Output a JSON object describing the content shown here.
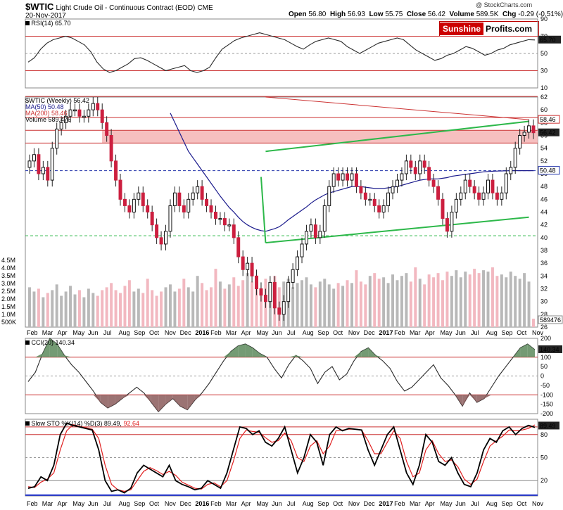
{
  "header": {
    "symbol": "$WTIC",
    "name": "Light Crude Oil - Continuous Contract (EOD)",
    "exchange": "CME",
    "date": "20-Nov-2017",
    "open_label": "Open",
    "open": "56.80",
    "high_label": "High",
    "high": "56.93",
    "low_label": "Low",
    "low": "55.75",
    "close_label": "Close",
    "close": "56.42",
    "volume_label": "Volume",
    "volume": "589.5K",
    "chg_label": "Chg",
    "chg": "-0.29 (-0.51%)",
    "credit": "@ StockCharts.com"
  },
  "logo": {
    "part1": "Sunshine",
    "part2": "Profits.com"
  },
  "colors": {
    "up": "#111111",
    "down": "#cc1f3f",
    "ma50": "#1a1a8c",
    "ma200": "#cc3333",
    "channel": "#2db84a",
    "zone": "#f4b4b4",
    "oscillator": "#2a2a2a",
    "signal": "#e02020"
  },
  "legends": {
    "rsi": "RSI(14) 65.70",
    "price_title": "$WTIC (Weekly) 56.42",
    "ma50": "MA(50) 50.48",
    "ma200": "MA(200) 58.46",
    "volume": "Volume 589,476",
    "cci": "CCI(20) 140.34",
    "sto_prefix": "Slow STO %K(14) %D(3)",
    "sto_k": "89.49",
    "sto_d": "92.64"
  },
  "chart_data": [
    {
      "type": "line",
      "title": "RSI(14) 65.70",
      "ylim": [
        10,
        90
      ],
      "yticks": [
        "90",
        "70",
        "50",
        "30",
        "10"
      ],
      "last_value": "65.70",
      "values": [
        40,
        45,
        55,
        62,
        66,
        68,
        70,
        68,
        64,
        60,
        52,
        40,
        32,
        28,
        30,
        34,
        38,
        44,
        45,
        42,
        38,
        34,
        30,
        32,
        34,
        36,
        30,
        28,
        30,
        34,
        45,
        55,
        60,
        65,
        68,
        70,
        72,
        74,
        72,
        70,
        68,
        66,
        62,
        58,
        55,
        60,
        64,
        66,
        68,
        66,
        64,
        58,
        54,
        50,
        54,
        58,
        62,
        64,
        66,
        68,
        66,
        60,
        54,
        50,
        46,
        42,
        44,
        48,
        50,
        54,
        58,
        56,
        52,
        48,
        50,
        54,
        56,
        60,
        62,
        64,
        66,
        65.7
      ]
    },
    {
      "type": "candlestick",
      "title": "$WTIC (Weekly) 56.42",
      "ylim": [
        26,
        62
      ],
      "yticks": [
        "62",
        "60",
        "58",
        "56",
        "54",
        "52",
        "50",
        "48",
        "46",
        "44",
        "42",
        "40",
        "38",
        "36",
        "34",
        "32",
        "30",
        "28",
        "26"
      ],
      "right_labels": {
        "ma200": "58.46",
        "close": "56.42",
        "ma50": "50.48",
        "volume": "589476"
      },
      "volume_axis": [
        "4.5M",
        "4.0M",
        "3.5M",
        "3.0M",
        "2.5M",
        "2.0M",
        "1.5M",
        "1.0M",
        "500K"
      ],
      "x_labels": [
        "Feb",
        "Mar",
        "Apr",
        "May",
        "Jun",
        "Jul",
        "Aug",
        "Sep",
        "Oct",
        "Nov",
        "Dec",
        "2016",
        "Feb",
        "Mar",
        "Apr",
        "May",
        "Jun",
        "Jul",
        "Aug",
        "Sep",
        "Oct",
        "Nov",
        "Dec",
        "2017",
        "Feb",
        "Mar",
        "Apr",
        "May",
        "Jun",
        "Jul",
        "Aug",
        "Sep",
        "Oct",
        "Nov"
      ],
      "closes": [
        52,
        53,
        50,
        51,
        49,
        54,
        57,
        58,
        59,
        60,
        60,
        59,
        59,
        60,
        61,
        60,
        58,
        56,
        52,
        49,
        46,
        45,
        44,
        46,
        47,
        45,
        44,
        42,
        40,
        39,
        41,
        45,
        47,
        45,
        44,
        46,
        47,
        48,
        46,
        45,
        44,
        43,
        43,
        42,
        42,
        40,
        37,
        35,
        36,
        34,
        32,
        31,
        30,
        33,
        29,
        28,
        30,
        33,
        35,
        37,
        39,
        41,
        42,
        40,
        41,
        45,
        48,
        50,
        49,
        50,
        49,
        50,
        48,
        47,
        46,
        46,
        45,
        44,
        45,
        47,
        48,
        49,
        50,
        52,
        51,
        50,
        52,
        51,
        49,
        48,
        46,
        43,
        41,
        44,
        46,
        47,
        49,
        48,
        47,
        46,
        47,
        49,
        47,
        46,
        47,
        50,
        51,
        54,
        56,
        56.5,
        57.5,
        56.42
      ],
      "ma50": [
        null,
        null,
        null,
        null,
        null,
        null,
        null,
        null,
        null,
        null,
        null,
        null,
        null,
        null,
        null,
        null,
        null,
        null,
        null,
        null,
        null,
        null,
        null,
        null,
        null,
        null,
        null,
        null,
        null,
        null,
        null,
        59.5,
        58,
        56.5,
        55,
        53.5,
        52.5,
        51.5,
        50.5,
        49.5,
        48.5,
        47.5,
        46.5,
        45.6,
        44.7,
        44,
        43.2,
        42.5,
        42,
        41.6,
        41.3,
        41.1,
        41,
        41.2,
        41.4,
        41.7,
        42.2,
        42.8,
        43.3,
        43.8,
        44.3,
        44.8,
        45.4,
        45.9,
        46.3,
        46.7,
        47,
        47.2,
        47.4,
        47.6,
        47.8,
        48,
        48,
        48,
        47.9,
        47.8,
        47.7,
        47.7,
        47.7,
        47.8,
        47.9,
        48,
        48.2,
        48.4,
        48.6,
        48.8,
        49,
        49.1,
        49.2,
        49.2,
        49.2,
        49.3,
        49.4,
        49.6,
        49.7,
        49.8,
        49.9,
        50,
        50.1,
        50.2,
        50.3,
        50.35,
        50.4,
        50.42,
        50.44,
        50.46,
        50.47,
        50.48,
        50.48,
        50.48,
        50.48,
        50.48
      ],
      "ma200": {
        "from": [
          52,
          62
        ],
        "to": [
          110,
          58.46
        ]
      },
      "channel_upper": {
        "from": [
          52,
          53.5
        ],
        "to": [
          110,
          58.2
        ]
      },
      "channel_lower": {
        "from": [
          52,
          39.2
        ],
        "to": [
          110,
          43.2
        ]
      },
      "hlines": [
        62.1,
        58.8,
        56.8,
        54.8,
        50.48,
        40.3
      ],
      "resistance_zone": [
        54.8,
        56.8
      ],
      "volumes": [
        2.8,
        2.5,
        2.7,
        2.1,
        2.4,
        2.6,
        3.0,
        2.2,
        2.5,
        2.9,
        2.3,
        2.6,
        2.1,
        2.7,
        2.4,
        2.2,
        2.6,
        2.8,
        3.1,
        2.6,
        2.4,
        2.9,
        3.3,
        2.5,
        2.7,
        2.4,
        3.4,
        2.6,
        2.2,
        2.5,
        2.8,
        3.0,
        2.5,
        2.7,
        3.4,
        2.8,
        2.5,
        3.6,
        3.1,
        2.6,
        2.8,
        4.1,
        3.2,
        2.7,
        3.0,
        3.5,
        2.9,
        3.3,
        3.8,
        3.2,
        2.9,
        2.7,
        3.4,
        3.1,
        3.6,
        2.8,
        3.2,
        3.4,
        2.8,
        3.1,
        3.3,
        3.5,
        3.0,
        2.8,
        3.2,
        3.4,
        3.0,
        2.7,
        3.1,
        2.9,
        3.3,
        3.1,
        4.0,
        3.2,
        3.0,
        3.6,
        3.8,
        3.4,
        3.5,
        3.1,
        3.7,
        3.3,
        3.6,
        3.8,
        3.2,
        4.2,
        3.4,
        3.0,
        3.7,
        3.5,
        3.8,
        3.3,
        3.9,
        3.6,
        4.0,
        3.5,
        3.9,
        3.7,
        4.1,
        3.8,
        4.0,
        3.9,
        4.2,
        3.6,
        3.7,
        3.5,
        3.9,
        3.6,
        3.4,
        3.8,
        3.2,
        0.59
      ]
    },
    {
      "type": "line",
      "title": "CCI(20) 140.34",
      "ylim": [
        -200,
        200
      ],
      "yticks": [
        "200",
        "140.34",
        "100",
        "50",
        "0",
        "-50",
        "-100",
        "-150",
        "-200"
      ],
      "values": [
        -30,
        20,
        120,
        200,
        170,
        110,
        60,
        20,
        -30,
        -80,
        -140,
        -170,
        -150,
        -120,
        -90,
        -60,
        -90,
        -140,
        -190,
        -150,
        -120,
        -160,
        -180,
        -130,
        -90,
        -40,
        20,
        80,
        130,
        160,
        170,
        150,
        120,
        100,
        40,
        -10,
        60,
        110,
        80,
        40,
        -40,
        20,
        50,
        -20,
        10,
        80,
        130,
        150,
        110,
        80,
        40,
        -30,
        -80,
        -60,
        -20,
        20,
        60,
        -10,
        -50,
        -100,
        -160,
        -90,
        -140,
        -120,
        -60,
        0,
        50,
        100,
        150,
        170,
        140.34
      ]
    },
    {
      "type": "line",
      "title": "Slow STO %K(14) %D(3) 89.49, 92.64",
      "ylim": [
        0,
        100
      ],
      "yticks": [
        "89.49",
        "80",
        "50",
        "20"
      ],
      "k": [
        10,
        12,
        25,
        20,
        40,
        80,
        95,
        92,
        90,
        88,
        86,
        60,
        20,
        6,
        8,
        4,
        10,
        30,
        40,
        35,
        30,
        25,
        40,
        20,
        15,
        12,
        8,
        10,
        20,
        15,
        10,
        30,
        60,
        90,
        88,
        80,
        85,
        70,
        65,
        75,
        90,
        60,
        30,
        50,
        80,
        70,
        40,
        80,
        90,
        85,
        88,
        87,
        86,
        60,
        40,
        60,
        80,
        90,
        60,
        30,
        15,
        40,
        80,
        70,
        45,
        40,
        50,
        30,
        15,
        12,
        30,
        60,
        75,
        70,
        85,
        90,
        80,
        88,
        92,
        89.49
      ],
      "d": [
        12,
        11,
        18,
        22,
        30,
        60,
        85,
        93,
        91,
        89,
        87,
        75,
        40,
        15,
        8,
        6,
        8,
        20,
        32,
        37,
        33,
        28,
        32,
        27,
        18,
        14,
        10,
        9,
        15,
        17,
        12,
        20,
        45,
        75,
        86,
        84,
        83,
        76,
        70,
        72,
        82,
        72,
        50,
        45,
        65,
        72,
        55,
        65,
        85,
        86,
        87,
        87,
        86,
        72,
        55,
        55,
        70,
        85,
        75,
        45,
        25,
        30,
        60,
        72,
        55,
        45,
        47,
        38,
        22,
        15,
        22,
        45,
        65,
        72,
        78,
        86,
        85,
        86,
        88,
        92.64
      ]
    }
  ]
}
